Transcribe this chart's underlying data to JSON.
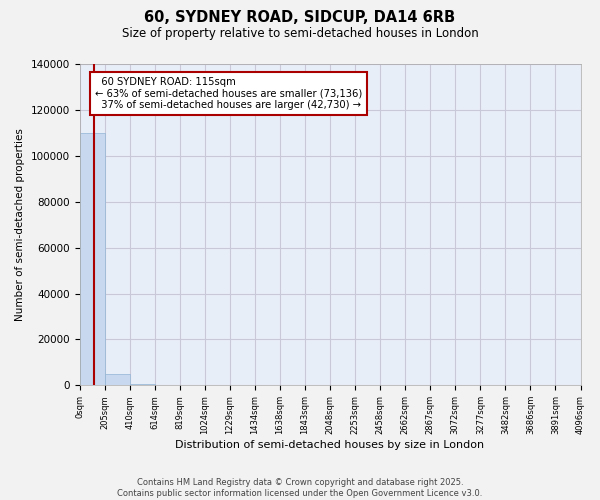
{
  "title": "60, SYDNEY ROAD, SIDCUP, DA14 6RB",
  "subtitle": "Size of property relative to semi-detached houses in London",
  "xlabel": "Distribution of semi-detached houses by size in London",
  "ylabel": "Number of semi-detached properties",
  "property_size": 115,
  "property_label": "60 SYDNEY ROAD: 115sqm",
  "smaller_pct": 63,
  "smaller_count": 73136,
  "larger_pct": 37,
  "larger_count": 42730,
  "bar_color": "#c8d8ee",
  "bar_edge_color": "#92b4d4",
  "vline_color": "#aa0000",
  "annotation_box_color": "#aa0000",
  "plot_bg_color": "#e8eef8",
  "fig_bg_color": "#f2f2f2",
  "grid_color": "#c8c8d8",
  "ylim": [
    0,
    140000
  ],
  "yticks": [
    0,
    20000,
    40000,
    60000,
    80000,
    100000,
    120000,
    140000
  ],
  "bin_edges": [
    0,
    205,
    410,
    614,
    819,
    1024,
    1229,
    1434,
    1638,
    1843,
    2048,
    2253,
    2458,
    2662,
    2867,
    3072,
    3277,
    3482,
    3686,
    3891,
    4096
  ],
  "bin_counts": [
    110000,
    5000,
    600,
    200,
    100,
    60,
    40,
    25,
    18,
    12,
    9,
    7,
    5,
    4,
    3,
    3,
    2,
    2,
    1,
    1
  ],
  "footer_line1": "Contains HM Land Registry data © Crown copyright and database right 2025.",
  "footer_line2": "Contains public sector information licensed under the Open Government Licence v3.0."
}
